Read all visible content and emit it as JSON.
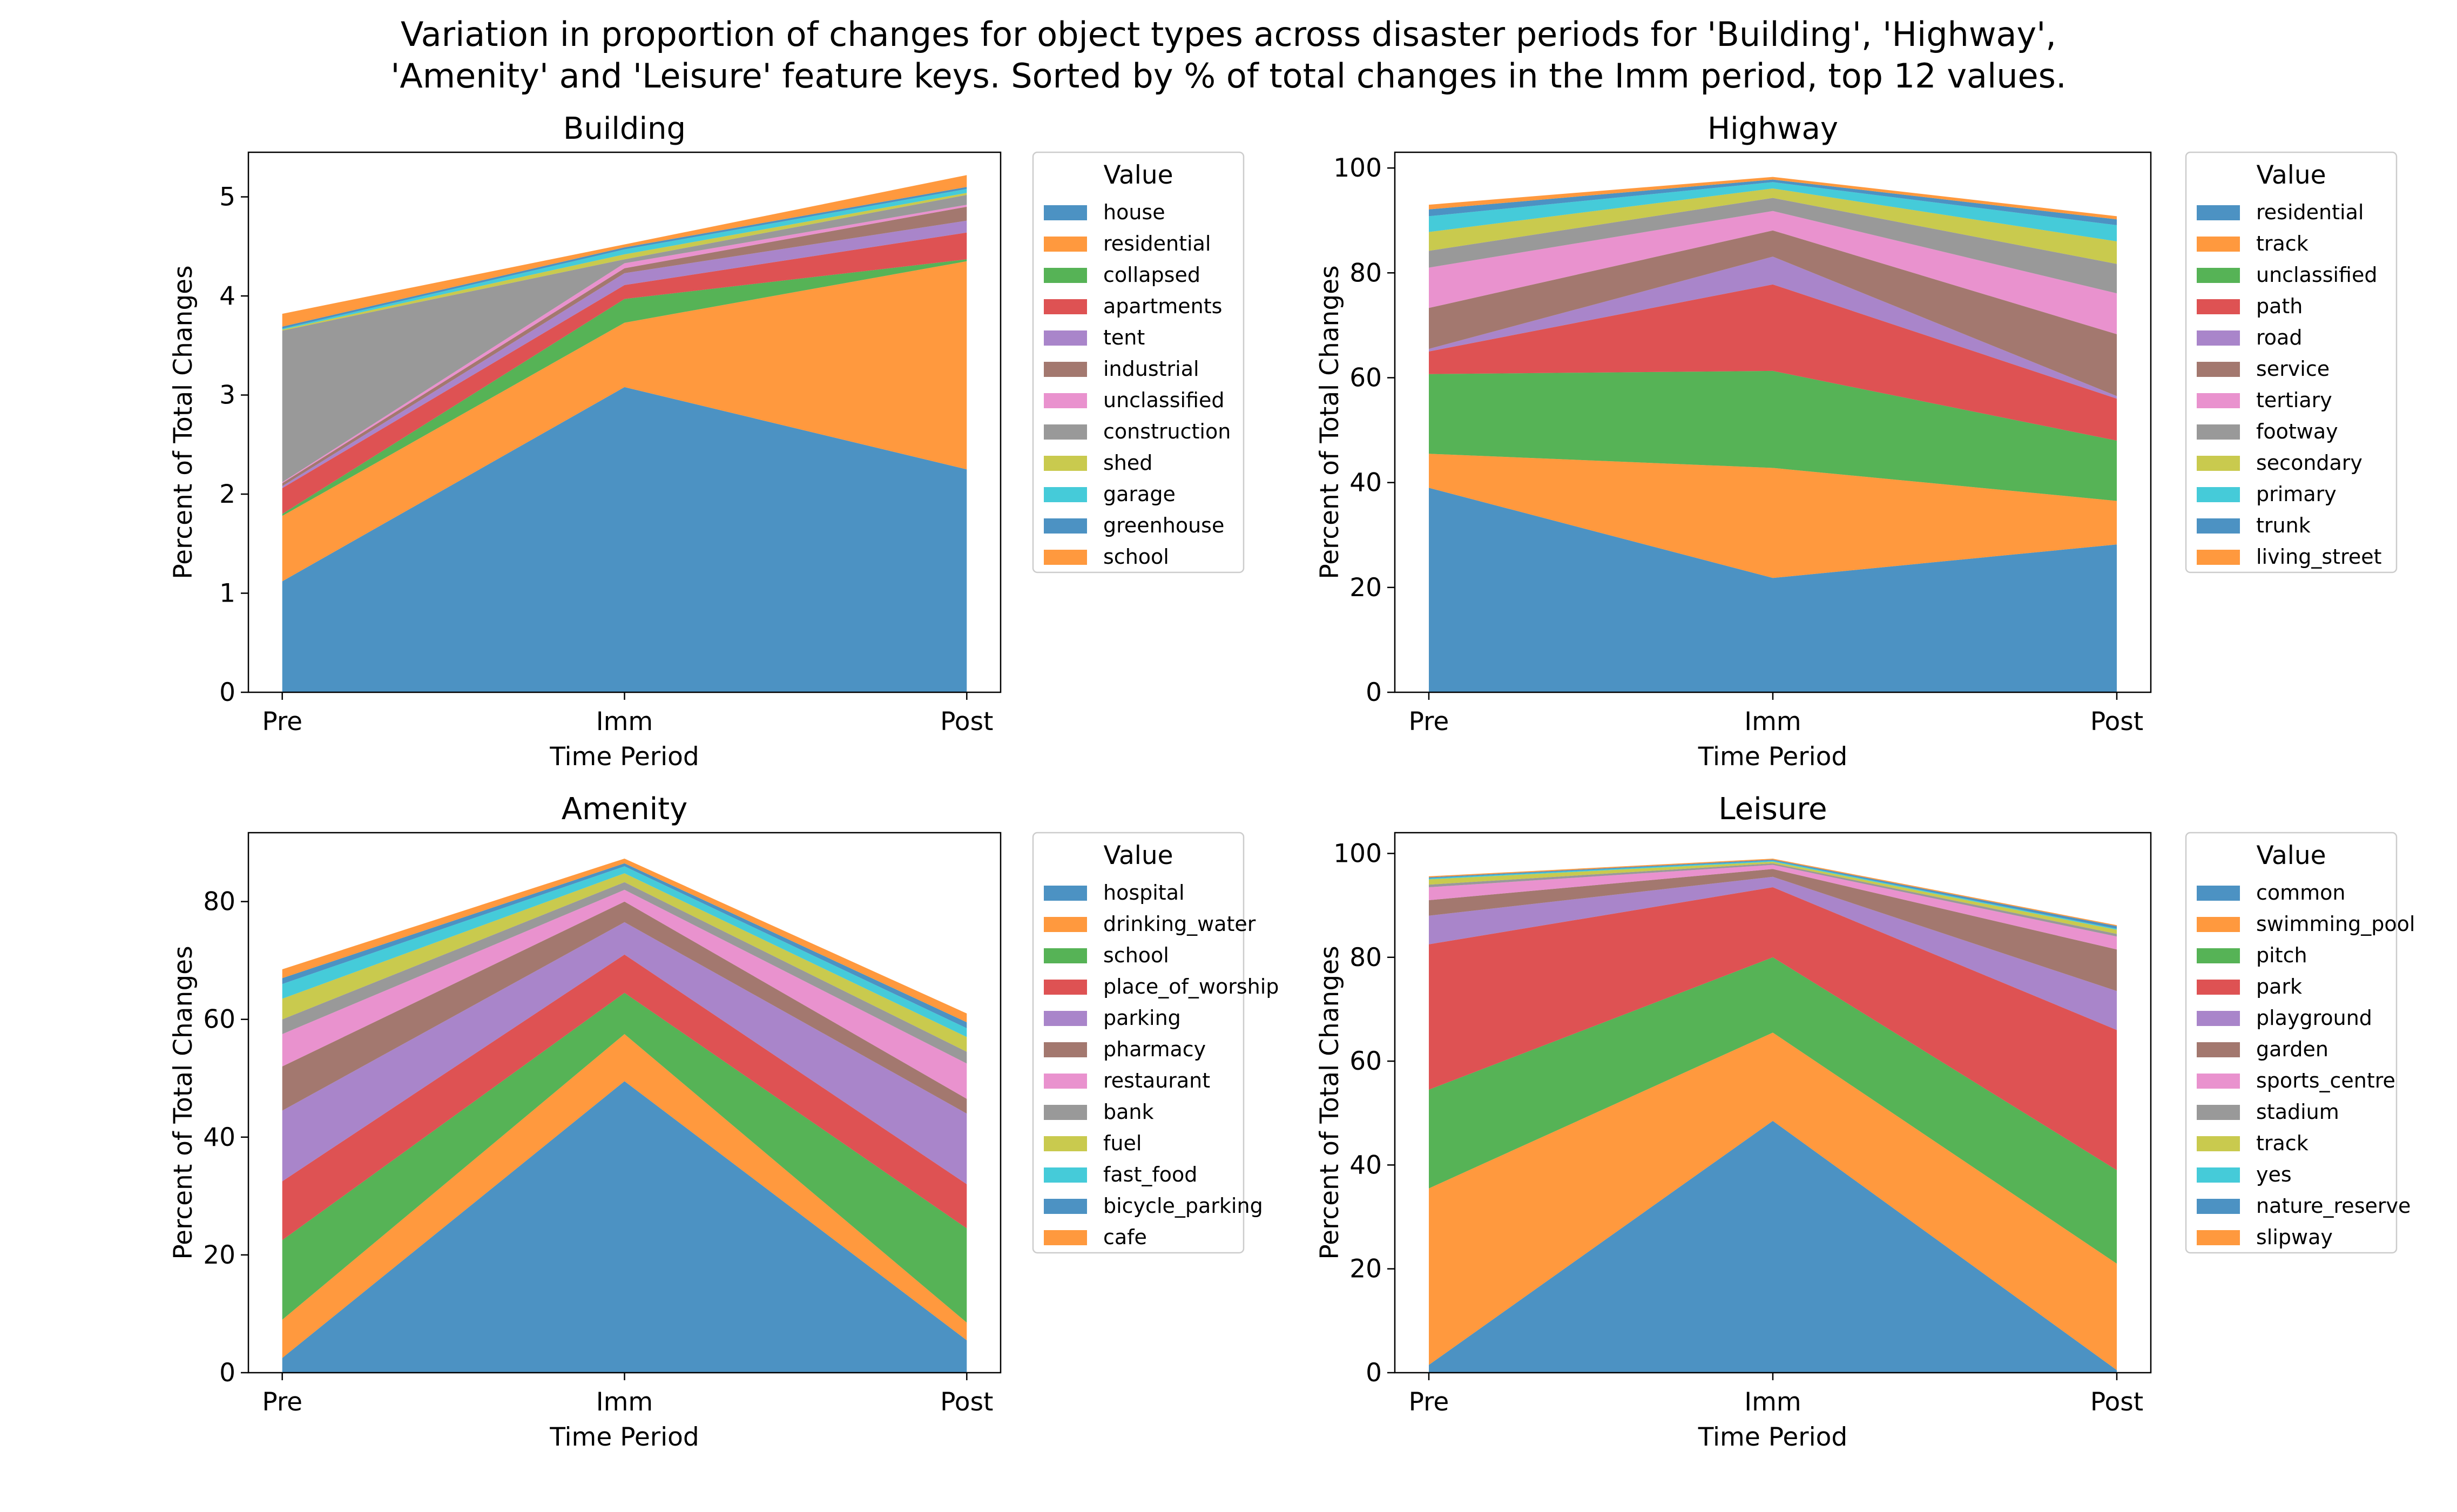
{
  "suptitle_lines": [
    "Variation in proportion of changes for object types across disaster periods for 'Building', 'Highway',",
    "'Amenity' and 'Leisure' feature keys. Sorted by % of total changes in the Imm period, top 12 values."
  ],
  "colors": [
    "#1f77b4",
    "#ff7f0e",
    "#2ca02c",
    "#d62728",
    "#9467bd",
    "#8c564b",
    "#e377c2",
    "#7f7f7f",
    "#bcbd22",
    "#17becf",
    "#1f77b4",
    "#ff7f0e"
  ],
  "chart_data": [
    {
      "type": "area",
      "stacked": true,
      "title": "Building",
      "xlabel": "Time Period",
      "ylabel": "Percent of Total Changes",
      "x": [
        "Pre",
        "Imm",
        "Post"
      ],
      "ylim": [
        0,
        5.45
      ],
      "yticks": [
        0,
        1,
        2,
        3,
        4,
        5
      ],
      "legend_title": "Value",
      "legend_position": "right, outside",
      "series": [
        {
          "name": "house",
          "values": [
            1.12,
            3.08,
            2.25
          ]
        },
        {
          "name": "residential",
          "values": [
            0.66,
            0.65,
            2.1
          ]
        },
        {
          "name": "collapsed",
          "values": [
            0.02,
            0.24,
            0.02
          ]
        },
        {
          "name": "apartments",
          "values": [
            0.26,
            0.14,
            0.27
          ]
        },
        {
          "name": "tent",
          "values": [
            0.02,
            0.12,
            0.12
          ]
        },
        {
          "name": "industrial",
          "values": [
            0.03,
            0.05,
            0.14
          ]
        },
        {
          "name": "unclassified",
          "values": [
            0.01,
            0.05,
            0.02
          ]
        },
        {
          "name": "construction",
          "values": [
            1.53,
            0.04,
            0.1
          ]
        },
        {
          "name": "shed",
          "values": [
            0.01,
            0.05,
            0.02
          ]
        },
        {
          "name": "garage",
          "values": [
            0.01,
            0.05,
            0.04
          ]
        },
        {
          "name": "greenhouse",
          "values": [
            0.02,
            0.02,
            0.02
          ]
        },
        {
          "name": "school",
          "values": [
            0.13,
            0.03,
            0.12
          ]
        }
      ]
    },
    {
      "type": "area",
      "stacked": true,
      "title": "Highway",
      "xlabel": "Time Period",
      "ylabel": "Percent of Total Changes",
      "x": [
        "Pre",
        "Imm",
        "Post"
      ],
      "ylim": [
        0,
        103
      ],
      "yticks": [
        0,
        20,
        40,
        60,
        80,
        100
      ],
      "legend_title": "Value",
      "legend_position": "right, outside",
      "series": [
        {
          "name": "residential",
          "values": [
            39.0,
            21.8,
            28.2
          ]
        },
        {
          "name": "track",
          "values": [
            6.5,
            21.0,
            8.3
          ]
        },
        {
          "name": "unclassified",
          "values": [
            15.2,
            18.5,
            11.5
          ]
        },
        {
          "name": "path",
          "values": [
            4.3,
            16.5,
            8.0
          ]
        },
        {
          "name": "road",
          "values": [
            0.5,
            5.3,
            0.5
          ]
        },
        {
          "name": "service",
          "values": [
            7.8,
            5.0,
            11.8
          ]
        },
        {
          "name": "tertiary",
          "values": [
            7.7,
            3.7,
            7.8
          ]
        },
        {
          "name": "footway",
          "values": [
            3.2,
            2.5,
            5.6
          ]
        },
        {
          "name": "secondary",
          "values": [
            3.6,
            1.8,
            4.3
          ]
        },
        {
          "name": "primary",
          "values": [
            3.0,
            1.2,
            3.1
          ]
        },
        {
          "name": "trunk",
          "values": [
            1.3,
            0.5,
            1.1
          ]
        },
        {
          "name": "living_street",
          "values": [
            0.9,
            0.5,
            0.6
          ]
        }
      ]
    },
    {
      "type": "area",
      "stacked": true,
      "title": "Amenity",
      "xlabel": "Time Period",
      "ylabel": "Percent of Total Changes",
      "x": [
        "Pre",
        "Imm",
        "Post"
      ],
      "ylim": [
        0,
        91.7
      ],
      "yticks": [
        0,
        20,
        40,
        60,
        80
      ],
      "legend_title": "Value",
      "legend_position": "right, outside",
      "series": [
        {
          "name": "hospital",
          "values": [
            2.5,
            49.5,
            5.5
          ]
        },
        {
          "name": "drinking_water",
          "values": [
            6.5,
            8.0,
            3.0
          ]
        },
        {
          "name": "school",
          "values": [
            13.5,
            7.0,
            16.0
          ]
        },
        {
          "name": "place_of_worship",
          "values": [
            10.0,
            6.5,
            7.5
          ]
        },
        {
          "name": "parking",
          "values": [
            12.0,
            5.5,
            12.0
          ]
        },
        {
          "name": "pharmacy",
          "values": [
            7.5,
            3.5,
            2.5
          ]
        },
        {
          "name": "restaurant",
          "values": [
            5.5,
            2.0,
            6.0
          ]
        },
        {
          "name": "bank",
          "values": [
            2.5,
            1.3,
            2.0
          ]
        },
        {
          "name": "fuel",
          "values": [
            3.5,
            1.5,
            2.5
          ]
        },
        {
          "name": "fast_food",
          "values": [
            2.5,
            1.2,
            1.5
          ]
        },
        {
          "name": "bicycle_parking",
          "values": [
            1.0,
            0.5,
            1.0
          ]
        },
        {
          "name": "cafe",
          "values": [
            1.5,
            0.8,
            1.5
          ]
        }
      ]
    },
    {
      "type": "area",
      "stacked": true,
      "title": "Leisure",
      "xlabel": "Time Period",
      "ylabel": "Percent of Total Changes",
      "x": [
        "Pre",
        "Imm",
        "Post"
      ],
      "ylim": [
        0,
        104
      ],
      "yticks": [
        0,
        20,
        40,
        60,
        80,
        100
      ],
      "legend_title": "Value",
      "legend_position": "right, outside",
      "series": [
        {
          "name": "common",
          "values": [
            1.5,
            48.5,
            0.5
          ]
        },
        {
          "name": "swimming_pool",
          "values": [
            34.0,
            17.0,
            20.5
          ]
        },
        {
          "name": "pitch",
          "values": [
            19.0,
            14.5,
            18.0
          ]
        },
        {
          "name": "park",
          "values": [
            28.0,
            13.5,
            27.0
          ]
        },
        {
          "name": "playground",
          "values": [
            5.5,
            2.0,
            7.5
          ]
        },
        {
          "name": "garden",
          "values": [
            3.0,
            1.5,
            8.0
          ]
        },
        {
          "name": "sports_centre",
          "values": [
            2.5,
            0.8,
            2.5
          ]
        },
        {
          "name": "stadium",
          "values": [
            0.5,
            0.3,
            0.5
          ]
        },
        {
          "name": "track",
          "values": [
            1.0,
            0.3,
            0.8
          ]
        },
        {
          "name": "yes",
          "values": [
            0.2,
            0.2,
            0.2
          ]
        },
        {
          "name": "nature_reserve",
          "values": [
            0.2,
            0.2,
            0.5
          ]
        },
        {
          "name": "slipway",
          "values": [
            0.2,
            0.2,
            0.2
          ]
        }
      ]
    }
  ]
}
